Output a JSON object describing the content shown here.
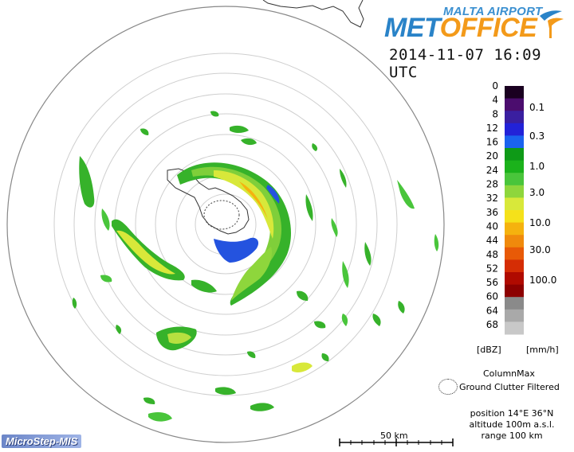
{
  "header": {
    "brand_top": "MALTA AIRPORT",
    "brand_met": "MET",
    "brand_office": "OFFICE",
    "timestamp": "2014-11-07 16:09 UTC"
  },
  "legend": {
    "dbz_ticks": [
      "0",
      "4",
      "8",
      "12",
      "16",
      "20",
      "24",
      "28",
      "32",
      "36",
      "40",
      "44",
      "48",
      "52",
      "56",
      "60",
      "64",
      "68"
    ],
    "rain_ticks": [
      "0.1",
      "0.3",
      "1.0",
      "3.0",
      "10.0",
      "30.0",
      "100.0"
    ],
    "colors": [
      "#1a0020",
      "#4b0d6e",
      "#3a1fa0",
      "#2222d8",
      "#1a63ef",
      "#0e9a17",
      "#1bb21b",
      "#49c53b",
      "#8ed63c",
      "#d8e83a",
      "#f5e11a",
      "#f5b20e",
      "#f08a0c",
      "#e85a07",
      "#d52d05",
      "#b00a00",
      "#8c0000",
      "#8a8a8a",
      "#a9a9a9",
      "#c8c8c8"
    ],
    "unit_dbz": "[dBZ]",
    "unit_mmh": "[mm/h]"
  },
  "notes": {
    "column_max": "ColumnMax",
    "ground_clutter": "Ground Clutter Filtered",
    "position": "position 14°E 36°N",
    "altitude": "altitude 100m a.s.l.",
    "range": "range 100 km"
  },
  "scalebar": {
    "label": "50 km"
  },
  "footer": {
    "vendor_logo": "MicroStep-MIS"
  }
}
